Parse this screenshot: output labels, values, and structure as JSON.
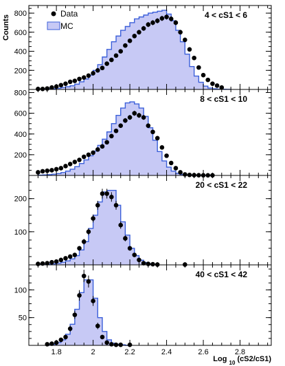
{
  "chart_data": {
    "type": "histogram",
    "x_axis_label": "Log",
    "x_axis_label_subscript": "10",
    "x_axis_label_suffix": "(cS2/cS1)",
    "y_axis_label": "Counts",
    "x_range": [
      1.65,
      2.97
    ],
    "x_ticks": [
      1.8,
      2.0,
      2.2,
      2.4,
      2.6,
      2.8
    ],
    "x_tick_labels": [
      "1.8",
      "2",
      "2.2",
      "2.4",
      "2.6",
      "2.8"
    ],
    "legend": {
      "position": "top-left of first panel",
      "entries": [
        {
          "label": "Data",
          "marker": "filled-circle"
        },
        {
          "label": "MC",
          "marker": "filled-box"
        }
      ]
    },
    "colors": {
      "mc_line": "#3b5fd9",
      "mc_fill": "#c7c9f5",
      "data_marker": "#000000"
    },
    "panels": [
      {
        "label": "4 < cS1 < 6",
        "y_range": [
          0,
          880
        ],
        "y_ticks": [
          200,
          400,
          600,
          800
        ],
        "y_tick_labels": [
          "200",
          "400",
          "600",
          "800"
        ],
        "bin_edges": [
          1.7,
          1.725,
          1.75,
          1.775,
          1.8,
          1.825,
          1.85,
          1.875,
          1.9,
          1.925,
          1.95,
          1.975,
          2.0,
          2.025,
          2.05,
          2.075,
          2.1,
          2.125,
          2.15,
          2.175,
          2.2,
          2.225,
          2.25,
          2.275,
          2.3,
          2.325,
          2.35,
          2.375,
          2.4,
          2.425,
          2.45,
          2.475,
          2.5,
          2.525,
          2.55,
          2.575,
          2.6,
          2.625,
          2.65,
          2.675,
          2.7,
          2.725,
          2.75
        ],
        "mc_values": [
          3,
          4,
          6,
          8,
          12,
          20,
          28,
          38,
          55,
          80,
          110,
          150,
          200,
          260,
          340,
          420,
          500,
          560,
          620,
          660,
          700,
          740,
          760,
          780,
          800,
          810,
          820,
          830,
          790,
          720,
          620,
          500,
          370,
          240,
          140,
          75,
          35,
          15,
          7,
          3,
          2,
          1
        ],
        "data_x": [
          1.7,
          1.725,
          1.75,
          1.775,
          1.8,
          1.825,
          1.85,
          1.875,
          1.9,
          1.925,
          1.95,
          1.975,
          2.0,
          2.025,
          2.05,
          2.075,
          2.1,
          2.125,
          2.15,
          2.175,
          2.2,
          2.225,
          2.25,
          2.275,
          2.3,
          2.325,
          2.35,
          2.375,
          2.4,
          2.425,
          2.45,
          2.475,
          2.5,
          2.525,
          2.55,
          2.575,
          2.6,
          2.625,
          2.65,
          2.675,
          2.7
        ],
        "data_y": [
          5,
          5,
          10,
          20,
          30,
          45,
          60,
          80,
          90,
          110,
          125,
          145,
          170,
          200,
          225,
          270,
          310,
          355,
          400,
          460,
          510,
          560,
          600,
          640,
          680,
          700,
          720,
          745,
          760,
          740,
          700,
          600,
          520,
          420,
          330,
          230,
          150,
          100,
          60,
          40,
          20
        ]
      },
      {
        "label": "8 < cS1 < 10",
        "y_range": [
          0,
          830
        ],
        "y_ticks": [
          200,
          400,
          600,
          800
        ],
        "y_tick_labels": [
          "200",
          "400",
          "600",
          "800"
        ],
        "bin_edges": [
          1.7,
          1.725,
          1.75,
          1.775,
          1.8,
          1.825,
          1.85,
          1.875,
          1.9,
          1.925,
          1.95,
          1.975,
          2.0,
          2.025,
          2.05,
          2.075,
          2.1,
          2.125,
          2.15,
          2.175,
          2.2,
          2.225,
          2.25,
          2.275,
          2.3,
          2.325,
          2.35,
          2.375,
          2.4,
          2.425,
          2.45,
          2.475,
          2.5,
          2.525,
          2.55,
          2.575,
          2.6,
          2.625,
          2.65
        ],
        "mc_values": [
          3,
          5,
          8,
          12,
          18,
          28,
          42,
          60,
          85,
          115,
          150,
          190,
          235,
          290,
          350,
          420,
          500,
          580,
          650,
          700,
          710,
          690,
          650,
          570,
          460,
          340,
          230,
          140,
          80,
          42,
          20,
          10,
          5,
          3,
          2,
          1,
          0,
          0
        ],
        "data_x": [
          1.7,
          1.725,
          1.75,
          1.775,
          1.8,
          1.825,
          1.85,
          1.875,
          1.9,
          1.925,
          1.95,
          1.975,
          2.0,
          2.025,
          2.05,
          2.075,
          2.1,
          2.125,
          2.15,
          2.175,
          2.2,
          2.225,
          2.25,
          2.275,
          2.3,
          2.325,
          2.35,
          2.375,
          2.4,
          2.425,
          2.45,
          2.475,
          2.5,
          2.525,
          2.55,
          2.575,
          2.6,
          2.625,
          2.65
        ],
        "data_y": [
          30,
          40,
          45,
          50,
          60,
          70,
          90,
          110,
          130,
          150,
          180,
          200,
          220,
          250,
          280,
          320,
          380,
          430,
          480,
          530,
          560,
          600,
          580,
          560,
          480,
          420,
          360,
          270,
          190,
          120,
          70,
          30,
          10,
          5,
          3,
          2,
          1,
          1,
          1
        ]
      },
      {
        "label": "20 < cS1 < 22",
        "y_range": [
          0,
          270
        ],
        "y_ticks": [
          100,
          200
        ],
        "y_tick_labels": [
          "100",
          "200"
        ],
        "bin_edges": [
          1.7,
          1.725,
          1.75,
          1.775,
          1.8,
          1.825,
          1.85,
          1.875,
          1.9,
          1.925,
          1.95,
          1.975,
          2.0,
          2.025,
          2.05,
          2.075,
          2.1,
          2.125,
          2.15,
          2.175,
          2.2,
          2.225,
          2.25,
          2.275,
          2.3,
          2.325,
          2.35
        ],
        "mc_values": [
          1,
          1,
          2,
          3,
          5,
          8,
          12,
          18,
          28,
          45,
          70,
          110,
          150,
          190,
          220,
          225,
          225,
          180,
          130,
          90,
          50,
          28,
          14,
          7,
          3,
          1
        ],
        "data_x": [
          1.7,
          1.725,
          1.75,
          1.775,
          1.8,
          1.825,
          1.85,
          1.875,
          1.9,
          1.925,
          1.95,
          1.975,
          2.0,
          2.025,
          2.05,
          2.075,
          2.1,
          2.125,
          2.15,
          2.175,
          2.2,
          2.225,
          2.25,
          2.275,
          2.3,
          2.325,
          2.35,
          2.5
        ],
        "data_y": [
          3,
          4,
          5,
          8,
          10,
          15,
          20,
          25,
          30,
          50,
          70,
          100,
          140,
          180,
          215,
          215,
          205,
          180,
          120,
          80,
          50,
          30,
          15,
          5,
          3,
          2,
          1,
          1
        ]
      },
      {
        "label": "40 < cS1 < 42",
        "y_range": [
          0,
          145
        ],
        "y_ticks": [
          50,
          100
        ],
        "y_tick_labels": [
          "50",
          "100"
        ],
        "bin_edges": [
          1.75,
          1.775,
          1.8,
          1.825,
          1.85,
          1.875,
          1.9,
          1.925,
          1.95,
          1.975,
          2.0,
          2.025,
          2.05,
          2.075,
          2.1,
          2.125,
          2.15,
          2.175,
          2.2
        ],
        "mc_values": [
          1,
          2,
          5,
          10,
          20,
          38,
          65,
          95,
          118,
          118,
          85,
          50,
          25,
          10,
          4,
          2,
          1,
          0
        ],
        "data_x": [
          1.75,
          1.775,
          1.8,
          1.825,
          1.85,
          1.875,
          1.9,
          1.925,
          1.95,
          1.975,
          2.0,
          2.025,
          2.05,
          2.075,
          2.1,
          2.125,
          2.15,
          2.2
        ],
        "data_y": [
          2,
          3,
          5,
          10,
          15,
          30,
          55,
          90,
          125,
          115,
          80,
          35,
          15,
          5,
          2,
          1,
          1,
          1
        ]
      }
    ]
  }
}
